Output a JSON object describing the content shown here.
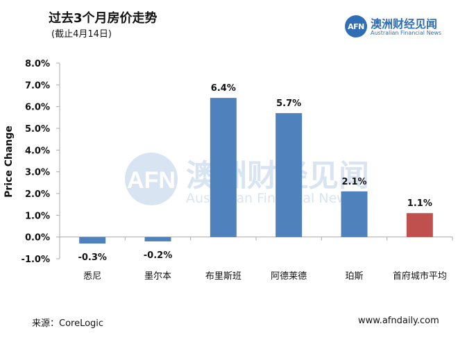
{
  "title": "过去3个月房价走势",
  "subtitle": "(截止4月14日)",
  "logo": {
    "mark": "AFN",
    "name_cn": "澳洲财经见闻",
    "name_en": "Australian Financial News"
  },
  "watermark": {
    "mark": "AFN",
    "name_cn": "澳洲财经见闻",
    "name_en": "Australian Financial News"
  },
  "footer": {
    "source": "来源：CoreLogic",
    "site": "www.afndaily.com"
  },
  "colors": {
    "bar": "#4f81bd",
    "highlight": "#c0504d",
    "axis": "#aaaaaa",
    "brand": "#2f6db5"
  },
  "chart_data": {
    "type": "bar",
    "ylabel": "Price Change",
    "ylim": [
      -1.0,
      8.0
    ],
    "yticks": [
      "8.0%",
      "7.0%",
      "6.0%",
      "5.0%",
      "4.0%",
      "3.0%",
      "2.0%",
      "1.0%",
      "0.0%",
      "-1.0%"
    ],
    "ytick_values": [
      8,
      7,
      6,
      5,
      4,
      3,
      2,
      1,
      0,
      -1
    ],
    "categories": [
      "悉尼",
      "墨尔本",
      "布里斯班",
      "阿德莱德",
      "珀斯",
      "首府城市平均"
    ],
    "values": [
      -0.3,
      -0.2,
      6.4,
      5.7,
      2.1,
      1.1
    ],
    "labels": [
      "-0.3%",
      "-0.2%",
      "6.4%",
      "5.7%",
      "2.1%",
      "1.1%"
    ],
    "highlight_index": 5,
    "grid": false
  }
}
